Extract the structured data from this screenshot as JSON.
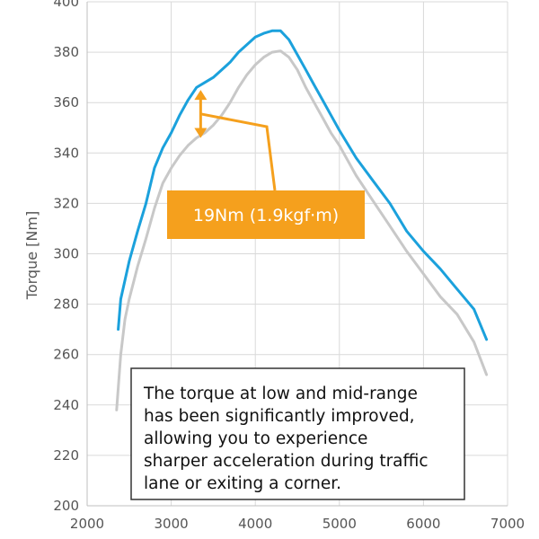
{
  "chart_data": {
    "type": "line",
    "title": "",
    "xlabel": "",
    "ylabel": "Torque [Nm]",
    "xlim": [
      2000,
      7000
    ],
    "ylim": [
      200,
      400
    ],
    "x_ticks": [
      2000,
      3000,
      4000,
      5000,
      6000,
      7000
    ],
    "y_ticks": [
      200,
      220,
      240,
      260,
      280,
      300,
      320,
      340,
      360,
      380,
      400
    ],
    "grid": {
      "x": true,
      "y": true
    },
    "legend": "none",
    "series": [
      {
        "color": "#1ba1dc",
        "points": [
          [
            2370,
            270
          ],
          [
            2400,
            282
          ],
          [
            2500,
            297
          ],
          [
            2600,
            309
          ],
          [
            2700,
            320
          ],
          [
            2800,
            334
          ],
          [
            2900,
            342
          ],
          [
            3000,
            348
          ],
          [
            3100,
            355
          ],
          [
            3200,
            361
          ],
          [
            3300,
            366
          ],
          [
            3400,
            368
          ],
          [
            3500,
            370
          ],
          [
            3600,
            373
          ],
          [
            3700,
            376
          ],
          [
            3800,
            380
          ],
          [
            3900,
            383
          ],
          [
            4000,
            386
          ],
          [
            4100,
            387.5
          ],
          [
            4200,
            388.5
          ],
          [
            4300,
            388.5
          ],
          [
            4400,
            385
          ],
          [
            4500,
            379
          ],
          [
            4600,
            373
          ],
          [
            4700,
            367
          ],
          [
            4800,
            361
          ],
          [
            4900,
            355
          ],
          [
            5000,
            349
          ],
          [
            5200,
            338
          ],
          [
            5400,
            329
          ],
          [
            5600,
            320
          ],
          [
            5800,
            309
          ],
          [
            6000,
            301
          ],
          [
            6200,
            294
          ],
          [
            6400,
            286
          ],
          [
            6600,
            278
          ],
          [
            6750,
            266
          ]
        ]
      },
      {
        "color": "#c8c8c8",
        "points": [
          [
            2350,
            238
          ],
          [
            2400,
            260
          ],
          [
            2450,
            274
          ],
          [
            2500,
            282
          ],
          [
            2600,
            295
          ],
          [
            2700,
            306
          ],
          [
            2800,
            318
          ],
          [
            2900,
            328
          ],
          [
            3000,
            334
          ],
          [
            3100,
            339
          ],
          [
            3200,
            343
          ],
          [
            3300,
            346
          ],
          [
            3400,
            348
          ],
          [
            3500,
            351
          ],
          [
            3600,
            355
          ],
          [
            3700,
            360
          ],
          [
            3800,
            366
          ],
          [
            3900,
            371
          ],
          [
            4000,
            375
          ],
          [
            4100,
            378
          ],
          [
            4200,
            380
          ],
          [
            4300,
            380.5
          ],
          [
            4400,
            378
          ],
          [
            4500,
            373
          ],
          [
            4600,
            366
          ],
          [
            4700,
            360
          ],
          [
            4800,
            354
          ],
          [
            4900,
            348
          ],
          [
            5000,
            343
          ],
          [
            5200,
            331
          ],
          [
            5400,
            321
          ],
          [
            5600,
            311
          ],
          [
            5800,
            301
          ],
          [
            6000,
            292
          ],
          [
            6200,
            283
          ],
          [
            6400,
            276
          ],
          [
            6600,
            265
          ],
          [
            6750,
            252
          ]
        ]
      }
    ],
    "annotations": [
      {
        "text": "19Nm (1.9kgf·m)",
        "color": "#f5a01d",
        "arrow_x": 3350,
        "arrow_y_range": [
          346,
          365
        ]
      }
    ],
    "note": {
      "lines": [
        "The torque at low and mid-range",
        "has been significantly improved,",
        "allowing you to experience",
        "sharper acceleration during traffic",
        "lane or exiting a corner."
      ]
    }
  }
}
